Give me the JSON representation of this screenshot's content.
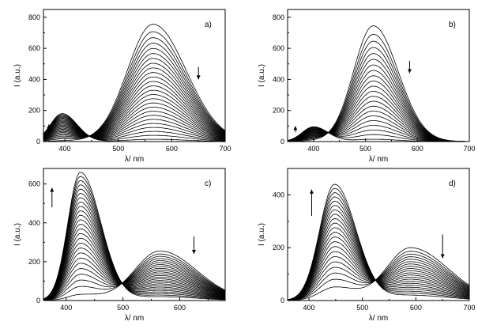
{
  "chart_data": [
    {
      "type": "line",
      "panel": "a)",
      "xlabel": "λ/ nm",
      "ylabel": "I (a.u.)",
      "xlim": [
        360,
        700
      ],
      "ylim": [
        0,
        850
      ],
      "xticks": [
        400,
        500,
        600,
        700
      ],
      "yticks": [
        0,
        200,
        400,
        600,
        800
      ],
      "series_count": 26,
      "band1": {
        "center": 395,
        "width_left": 22,
        "width_right": 28,
        "peak_min": 5,
        "peak_max": 180
      },
      "band2": {
        "center": 565,
        "width_left": 48,
        "width_right": 62,
        "peak_min": 15,
        "peak_max": 755
      },
      "arrows": [
        {
          "x": 370,
          "y_from": 70,
          "y_to": 110,
          "direction": "up"
        },
        {
          "x": 650,
          "y_from": 480,
          "y_to": 400,
          "direction": "down"
        }
      ]
    },
    {
      "type": "line",
      "panel": "b)",
      "xlabel": "λ/ nm",
      "ylabel": "I (a.u.)",
      "xlim": [
        350,
        700
      ],
      "ylim": [
        0,
        850
      ],
      "xticks": [
        400,
        500,
        600,
        700
      ],
      "yticks": [
        0,
        200,
        400,
        600,
        800
      ],
      "series_count": 22,
      "band1": {
        "center": 400,
        "width_left": 22,
        "width_right": 28,
        "peak_min": 5,
        "peak_max": 95
      },
      "band2": {
        "center": 515,
        "width_left": 38,
        "width_right": 48,
        "peak_min": 15,
        "peak_max": 745
      },
      "arrows": [
        {
          "x": 365,
          "y_from": 60,
          "y_to": 100,
          "direction": "up"
        },
        {
          "x": 585,
          "y_from": 520,
          "y_to": 440,
          "direction": "down"
        }
      ]
    },
    {
      "type": "line",
      "panel": "c)",
      "xlabel": "λ/ nm",
      "ylabel": "I (a.u.)",
      "xlim": [
        360,
        680
      ],
      "ylim": [
        0,
        680
      ],
      "xticks": [
        400,
        500,
        600
      ],
      "yticks": [
        0,
        200,
        400,
        600
      ],
      "series_count": 26,
      "band1": {
        "center": 425,
        "width_left": 22,
        "width_right": 36,
        "peak_min": 30,
        "peak_max": 660
      },
      "band2": {
        "center": 565,
        "width_left": 45,
        "width_right": 65,
        "peak_min": 20,
        "peak_max": 255
      },
      "arrows": [
        {
          "x": 375,
          "y_from": 480,
          "y_to": 580,
          "direction": "up"
        },
        {
          "x": 625,
          "y_from": 330,
          "y_to": 240,
          "direction": "down"
        }
      ]
    },
    {
      "type": "line",
      "panel": "d)",
      "xlabel": "λ/ nm",
      "ylabel": "I (a.u.)",
      "xlim": [
        360,
        700
      ],
      "ylim": [
        0,
        500
      ],
      "xticks": [
        400,
        500,
        600,
        700
      ],
      "yticks": [
        0,
        200,
        400
      ],
      "series_count": 22,
      "band1": {
        "center": 448,
        "width_left": 28,
        "width_right": 40,
        "peak_min": 50,
        "peak_max": 440
      },
      "band2": {
        "center": 590,
        "width_left": 45,
        "width_right": 70,
        "peak_min": 20,
        "peak_max": 200
      },
      "arrows": [
        {
          "x": 405,
          "y_from": 320,
          "y_to": 420,
          "direction": "up"
        },
        {
          "x": 650,
          "y_from": 250,
          "y_to": 160,
          "direction": "down"
        }
      ]
    }
  ]
}
